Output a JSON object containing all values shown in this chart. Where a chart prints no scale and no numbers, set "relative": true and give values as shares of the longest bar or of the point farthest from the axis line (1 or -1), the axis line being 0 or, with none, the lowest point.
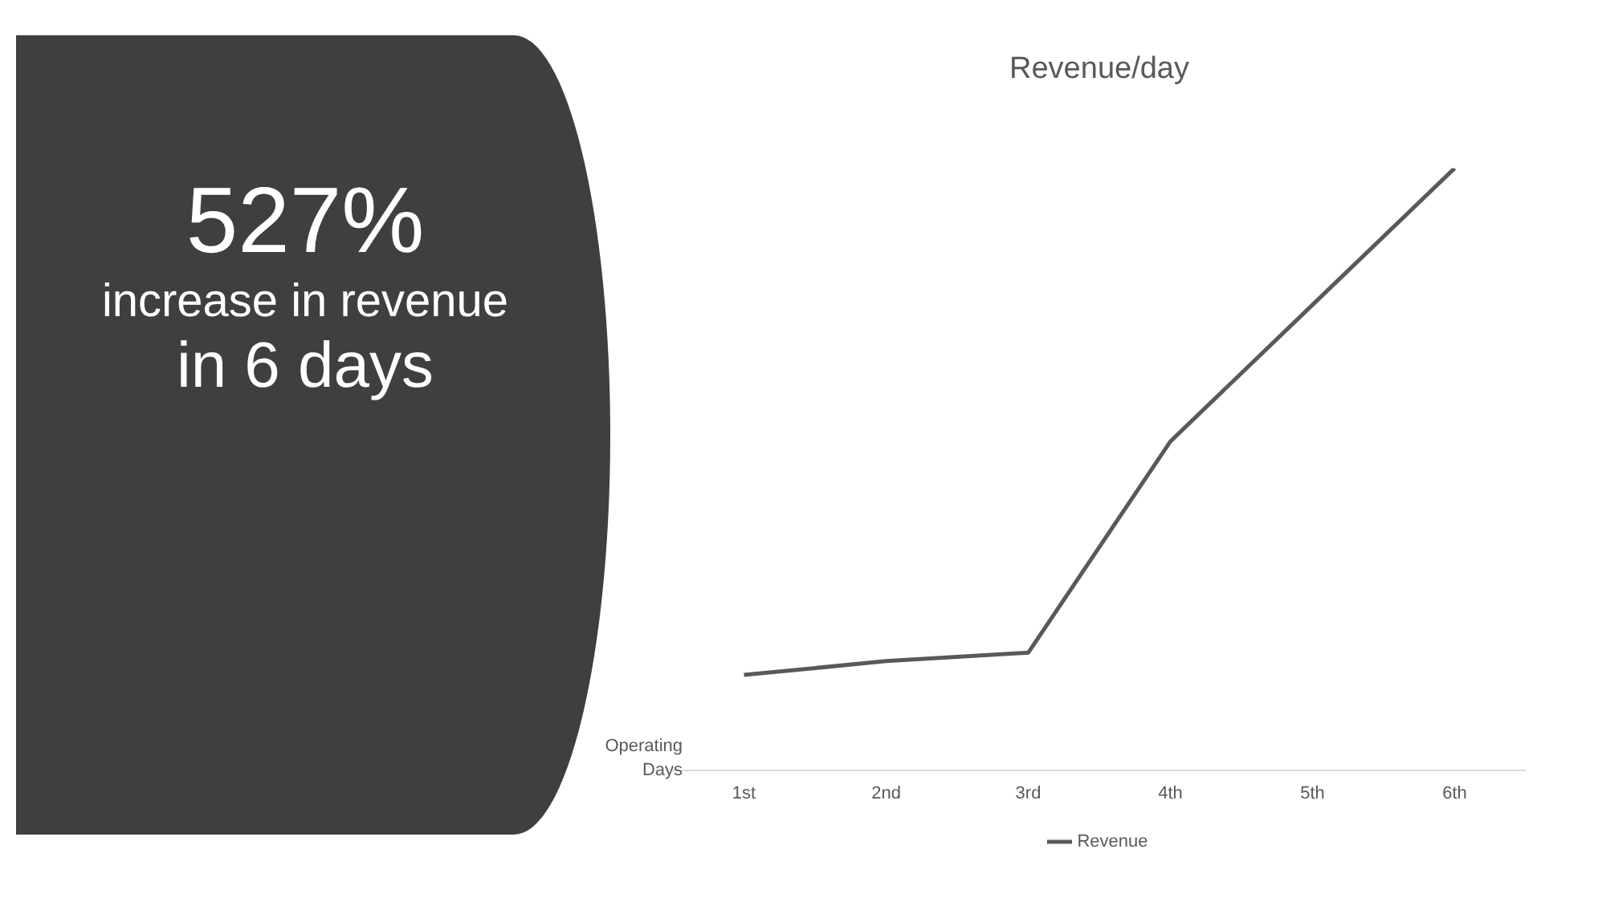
{
  "chart_data": {
    "type": "line",
    "title": "Revenue/day",
    "xlabel": "Operating Days",
    "categories": [
      "1st",
      "2nd",
      "3rd",
      "4th",
      "5th",
      "6th"
    ],
    "relative": true,
    "series": [
      {
        "name": "Revenue",
        "color": "#595959",
        "values": [
          0.158,
          0.181,
          0.195,
          0.546,
          0.773,
          1
        ]
      }
    ],
    "legend": "bottom",
    "grid": false,
    "marker": "none",
    "annotations": [
      "527%",
      "increase in revenue",
      "in 6 days"
    ]
  }
}
